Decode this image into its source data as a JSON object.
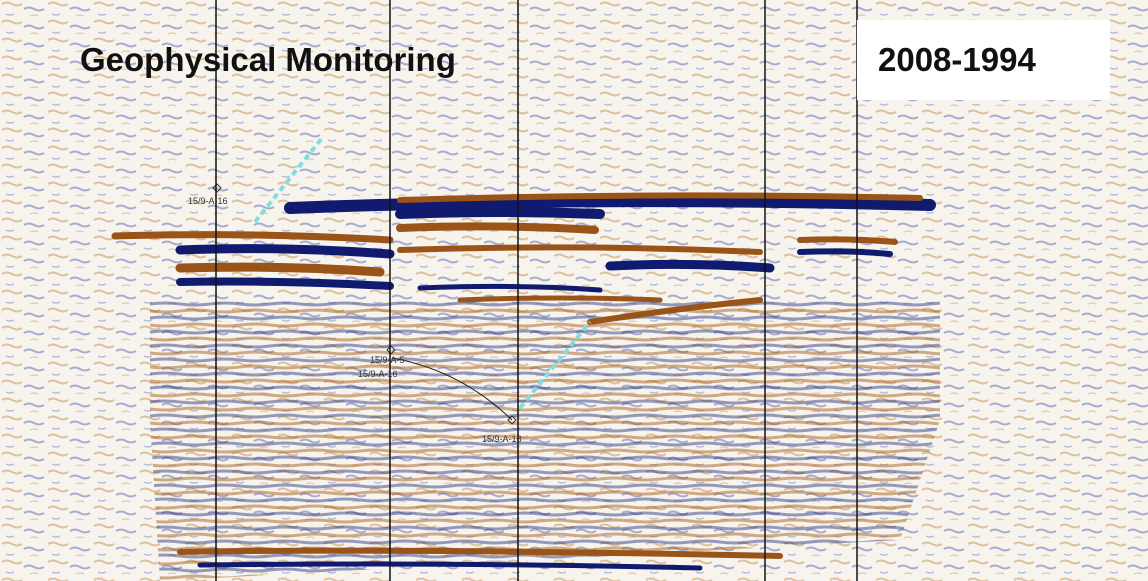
{
  "title": "Geophysical Monitoring",
  "period": "2008-1994",
  "wells": [
    {
      "label": "15/9-A-16"
    },
    {
      "label": "15/9-A-5"
    },
    {
      "label": "15/9-A-16"
    },
    {
      "label": "15/9-A-18"
    }
  ]
}
